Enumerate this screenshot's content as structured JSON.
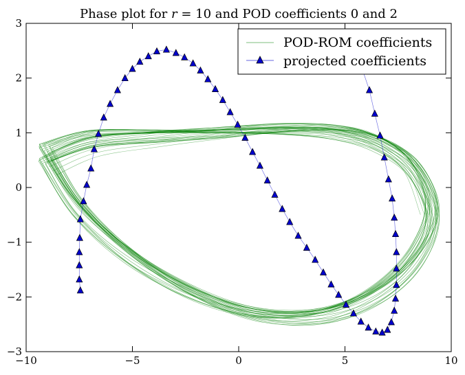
{
  "chart_data": {
    "type": "line",
    "title": "Phase plot for r = 10 and POD coefficients 0 and 2",
    "title_parts": {
      "prefix": "Phase plot for ",
      "var": "r",
      "eq": " = 10",
      "suffix": " and POD coefficients 0 and 2"
    },
    "xlabel": "",
    "ylabel": "",
    "xlim": [
      -10,
      10
    ],
    "ylim": [
      -3,
      3
    ],
    "xticks": [
      -10,
      -5,
      0,
      5,
      10
    ],
    "yticks": [
      -3,
      -2,
      -1,
      0,
      1,
      2,
      3
    ],
    "xtick_labels": [
      "−10",
      "−5",
      "0",
      "5",
      "10"
    ],
    "ytick_labels": [
      "−3",
      "−2",
      "−1",
      "0",
      "1",
      "2",
      "3"
    ],
    "grid": false,
    "legend_position": "top-right",
    "series": [
      {
        "name": "POD-ROM coefficients",
        "color": "#008000",
        "marker": "none",
        "style": "thin line",
        "orbit": {
          "x_left": -9.2,
          "x_right": 9.1,
          "loop_count": 28,
          "turns": 4,
          "points": [
            [
              -9.1,
              0.55
            ],
            [
              -7.0,
              0.85
            ],
            [
              -4.0,
              0.97
            ],
            [
              -1.0,
              1.06
            ],
            [
              2.0,
              1.13
            ],
            [
              4.5,
              1.08
            ],
            [
              6.5,
              0.85
            ],
            [
              8.2,
              0.35
            ],
            [
              9.1,
              -0.5
            ],
            [
              8.3,
              -1.3
            ],
            [
              6.5,
              -1.9
            ],
            [
              4.0,
              -2.25
            ],
            [
              1.0,
              -2.25
            ],
            [
              -2.0,
              -1.9
            ],
            [
              -5.0,
              -1.25
            ],
            [
              -7.5,
              -0.4
            ],
            [
              -9.1,
              0.55
            ]
          ]
        }
      },
      {
        "name": "projected coefficients",
        "color": "#0000cc",
        "marker": "triangle",
        "points": [
          [
            -7.45,
            -1.88
          ],
          [
            -7.5,
            -1.68
          ],
          [
            -7.5,
            -1.42
          ],
          [
            -7.5,
            -1.18
          ],
          [
            -7.48,
            -0.92
          ],
          [
            -7.45,
            -0.58
          ],
          [
            -7.3,
            -0.25
          ],
          [
            -7.15,
            0.05
          ],
          [
            -6.95,
            0.35
          ],
          [
            -6.8,
            0.7
          ],
          [
            -6.6,
            0.98
          ],
          [
            -6.35,
            1.28
          ],
          [
            -6.05,
            1.53
          ],
          [
            -5.7,
            1.78
          ],
          [
            -5.35,
            2.0
          ],
          [
            -5.0,
            2.17
          ],
          [
            -4.65,
            2.3
          ],
          [
            -4.25,
            2.4
          ],
          [
            -3.85,
            2.49
          ],
          [
            -3.4,
            2.52
          ],
          [
            -2.95,
            2.46
          ],
          [
            -2.55,
            2.38
          ],
          [
            -2.15,
            2.27
          ],
          [
            -1.8,
            2.14
          ],
          [
            -1.45,
            1.98
          ],
          [
            -1.1,
            1.8
          ],
          [
            -0.75,
            1.6
          ],
          [
            -0.4,
            1.38
          ],
          [
            -0.05,
            1.15
          ],
          [
            0.3,
            0.91
          ],
          [
            0.65,
            0.65
          ],
          [
            1.0,
            0.4
          ],
          [
            1.35,
            0.13
          ],
          [
            1.7,
            -0.13
          ],
          [
            2.05,
            -0.39
          ],
          [
            2.4,
            -0.63
          ],
          [
            2.8,
            -0.88
          ],
          [
            3.2,
            -1.1
          ],
          [
            3.6,
            -1.32
          ],
          [
            3.98,
            -1.55
          ],
          [
            4.35,
            -1.77
          ],
          [
            4.7,
            -1.96
          ],
          [
            5.05,
            -2.14
          ],
          [
            5.4,
            -2.3
          ],
          [
            5.75,
            -2.45
          ],
          [
            6.1,
            -2.56
          ],
          [
            6.45,
            -2.63
          ],
          [
            6.75,
            -2.65
          ],
          [
            7.0,
            -2.6
          ],
          [
            7.18,
            -2.46
          ],
          [
            7.32,
            -2.25
          ],
          [
            7.38,
            -2.03
          ],
          [
            7.42,
            -1.78
          ],
          [
            7.42,
            -1.48
          ],
          [
            7.42,
            -1.18
          ],
          [
            7.38,
            -0.85
          ],
          [
            7.32,
            -0.55
          ],
          [
            7.22,
            -0.2
          ],
          [
            7.05,
            0.15
          ],
          [
            6.85,
            0.55
          ],
          [
            6.65,
            0.95
          ],
          [
            6.4,
            1.35
          ],
          [
            6.15,
            1.78
          ],
          [
            5.85,
            2.12
          ],
          [
            5.55,
            2.38
          ],
          [
            5.25,
            2.53
          ]
        ]
      }
    ]
  }
}
